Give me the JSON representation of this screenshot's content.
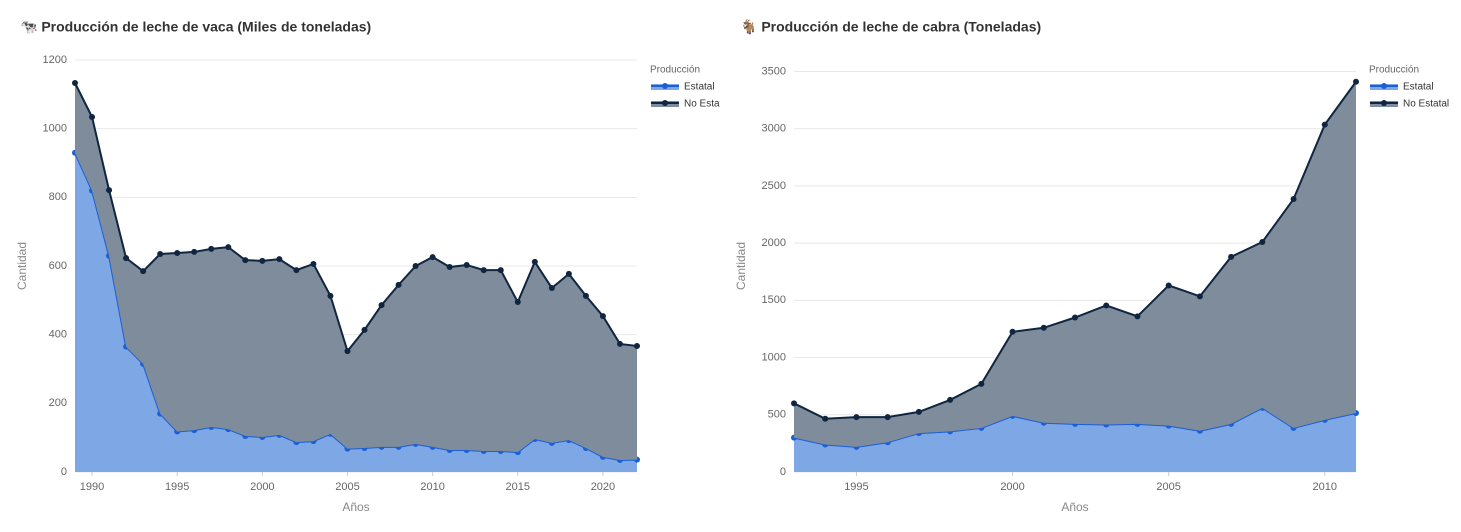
{
  "chart_data": [
    {
      "type": "area",
      "stacked": true,
      "title": "🐄 Producción de leche de vaca (Miles de toneladas)",
      "x_label": "Años",
      "y_label": "Cantidad",
      "legend_title": "Producción",
      "legend": "right",
      "grid": true,
      "x": [
        1989,
        1990,
        1991,
        1992,
        1993,
        1994,
        1995,
        1996,
        1997,
        1998,
        1999,
        2000,
        2001,
        2002,
        2003,
        2004,
        2005,
        2006,
        2007,
        2008,
        2009,
        2010,
        2011,
        2012,
        2013,
        2014,
        2015,
        2016,
        2017,
        2018,
        2019,
        2020,
        2021,
        2022
      ],
      "xlim": [
        1989,
        2022
      ],
      "xticks": [
        1990,
        1995,
        2000,
        2005,
        2010,
        2015,
        2020
      ],
      "ylim": [
        0,
        1200
      ],
      "yticks": [
        0,
        200,
        400,
        600,
        800,
        1000,
        1200
      ],
      "series": [
        {
          "name": "Estatal",
          "color": "#1a5fd6",
          "fill": "#7ea7e6",
          "values": [
            930,
            820,
            630,
            365,
            315,
            170,
            118,
            122,
            131,
            125,
            105,
            102,
            108,
            87,
            90,
            111,
            68,
            70,
            73,
            73,
            82,
            73,
            64,
            64,
            61,
            61,
            58,
            96,
            85,
            93,
            70,
            44,
            35,
            36
          ]
        },
        {
          "name": "No Estatal",
          "color": "#0f2540",
          "fill": "#7f8c9b",
          "values": [
            203,
            214,
            191,
            258,
            270,
            465,
            520,
            519,
            519,
            530,
            512,
            513,
            512,
            501,
            516,
            402,
            284,
            344,
            413,
            472,
            518,
            553,
            533,
            539,
            527,
            527,
            437,
            516,
            451,
            484,
            443,
            410,
            338,
            331
          ]
        }
      ]
    },
    {
      "type": "area",
      "stacked": true,
      "title": "🐐 Producción de leche de cabra (Toneladas)",
      "x_label": "Años",
      "y_label": "Cantidad",
      "legend_title": "Producción",
      "legend": "right",
      "grid": true,
      "x": [
        1993,
        1994,
        1995,
        1996,
        1997,
        1998,
        1999,
        2000,
        2001,
        2002,
        2003,
        2004,
        2005,
        2006,
        2007,
        2008,
        2009,
        2010,
        2011
      ],
      "xlim": [
        1993,
        2011
      ],
      "xticks": [
        1995,
        2000,
        2005,
        2010
      ],
      "ylim": [
        0,
        3600
      ],
      "yticks": [
        0,
        500,
        1000,
        1500,
        2000,
        2500,
        3000,
        3500
      ],
      "series": [
        {
          "name": "Estatal",
          "color": "#1a5fd6",
          "fill": "#7ea7e6",
          "values": [
            300,
            240,
            220,
            260,
            340,
            355,
            385,
            490,
            430,
            420,
            415,
            420,
            405,
            360,
            420,
            560,
            385,
            455,
            515
          ]
        },
        {
          "name": "No Estatal",
          "color": "#0f2540",
          "fill": "#7f8c9b",
          "values": [
            300,
            225,
            260,
            220,
            185,
            275,
            385,
            735,
            830,
            930,
            1040,
            940,
            1225,
            1175,
            1460,
            1450,
            2000,
            2580,
            2895
          ]
        }
      ]
    }
  ]
}
